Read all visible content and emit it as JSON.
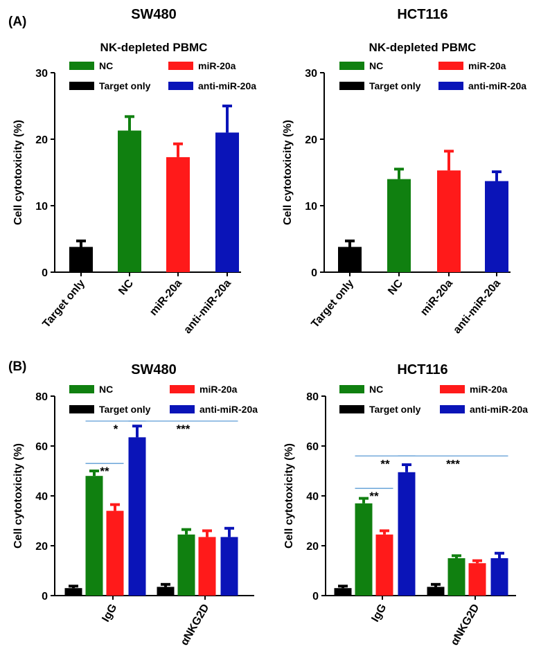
{
  "panels": [
    {
      "label": "(A)"
    },
    {
      "label": "(B)"
    }
  ],
  "colors": {
    "Target only": "#000000",
    "NC": "#108010",
    "miR-20a": "#ff1a1a",
    "anti-miR-20a": "#0a14b8",
    "significance_line": "#5b9bd5"
  },
  "chart_data": [
    {
      "id": "A-SW480",
      "type": "bar",
      "panel": "(A)",
      "title": "SW480",
      "subtitle": "NK-depleted PBMC",
      "ylabel": "Cell cytotoxicity (%)",
      "ylim": [
        0,
        30
      ],
      "yticks": [
        0,
        10,
        20,
        30
      ],
      "categories": [
        "Target only",
        "NC",
        "miR-20a",
        "anti-miR-20a"
      ],
      "values": [
        3.8,
        21.3,
        17.3,
        21.0
      ],
      "errors": [
        0.9,
        2.1,
        2.0,
        4.0
      ],
      "legend": [
        "NC",
        "miR-20a",
        "Target only",
        "anti-miR-20a"
      ],
      "legend_position": "top"
    },
    {
      "id": "A-HCT116",
      "type": "bar",
      "panel": "(A)",
      "title": "HCT116",
      "subtitle": "NK-depleted PBMC",
      "ylabel": "Cell cytotoxicity (%)",
      "ylim": [
        0,
        30
      ],
      "yticks": [
        0,
        10,
        20,
        30
      ],
      "categories": [
        "Target only",
        "NC",
        "miR-20a",
        "anti-miR-20a"
      ],
      "values": [
        3.8,
        14.0,
        15.3,
        13.7
      ],
      "errors": [
        0.9,
        1.5,
        2.9,
        1.4
      ],
      "legend": [
        "NC",
        "miR-20a",
        "Target only",
        "anti-miR-20a"
      ],
      "legend_position": "top"
    },
    {
      "id": "B-SW480",
      "type": "bar",
      "panel": "(B)",
      "title": "SW480",
      "ylabel": "Cell cytotoxicity (%)",
      "ylim": [
        0,
        80
      ],
      "yticks": [
        0,
        20,
        40,
        60,
        80
      ],
      "categories": [
        "IgG",
        "αNKG2D"
      ],
      "series": [
        {
          "name": "Target only",
          "values": [
            3.0,
            3.5
          ],
          "errors": [
            0.8,
            1.0
          ]
        },
        {
          "name": "NC",
          "values": [
            48.0,
            24.5
          ],
          "errors": [
            2.0,
            2.0
          ]
        },
        {
          "name": "miR-20a",
          "values": [
            34.0,
            23.5
          ],
          "errors": [
            2.5,
            2.5
          ]
        },
        {
          "name": "anti-miR-20a",
          "values": [
            63.5,
            23.5
          ],
          "errors": [
            4.5,
            3.5
          ]
        }
      ],
      "significance": [
        {
          "label": "**",
          "from": [
            0,
            1
          ],
          "to": [
            0,
            2
          ],
          "y": 53
        },
        {
          "label": "*",
          "from": [
            0,
            1
          ],
          "to": [
            0,
            3
          ],
          "y": 70
        },
        {
          "label": "***",
          "from": [
            0,
            3
          ],
          "to": [
            1,
            3
          ],
          "y": 70
        }
      ],
      "legend": [
        "NC",
        "miR-20a",
        "Target only",
        "anti-miR-20a"
      ],
      "legend_position": "top"
    },
    {
      "id": "B-HCT116",
      "type": "bar",
      "panel": "(B)",
      "title": "HCT116",
      "ylabel": "Cell cytotoxicity (%)",
      "ylim": [
        0,
        80
      ],
      "yticks": [
        0,
        20,
        40,
        60,
        80
      ],
      "categories": [
        "IgG",
        "αNKG2D"
      ],
      "series": [
        {
          "name": "Target only",
          "values": [
            3.0,
            3.5
          ],
          "errors": [
            0.8,
            1.0
          ]
        },
        {
          "name": "NC",
          "values": [
            37.0,
            15.0
          ],
          "errors": [
            2.0,
            1.0
          ]
        },
        {
          "name": "miR-20a",
          "values": [
            24.5,
            13.0
          ],
          "errors": [
            1.5,
            1.0
          ]
        },
        {
          "name": "anti-miR-20a",
          "values": [
            49.5,
            15.0
          ],
          "errors": [
            3.0,
            2.0
          ]
        }
      ],
      "significance": [
        {
          "label": "**",
          "from": [
            0,
            1
          ],
          "to": [
            0,
            2
          ],
          "y": 43
        },
        {
          "label": "**",
          "from": [
            0,
            1
          ],
          "to": [
            0,
            3
          ],
          "y": 56
        },
        {
          "label": "***",
          "from": [
            0,
            3
          ],
          "to": [
            1,
            3
          ],
          "y": 56
        }
      ],
      "legend": [
        "NC",
        "miR-20a",
        "Target only",
        "anti-miR-20a"
      ],
      "legend_position": "top"
    }
  ]
}
